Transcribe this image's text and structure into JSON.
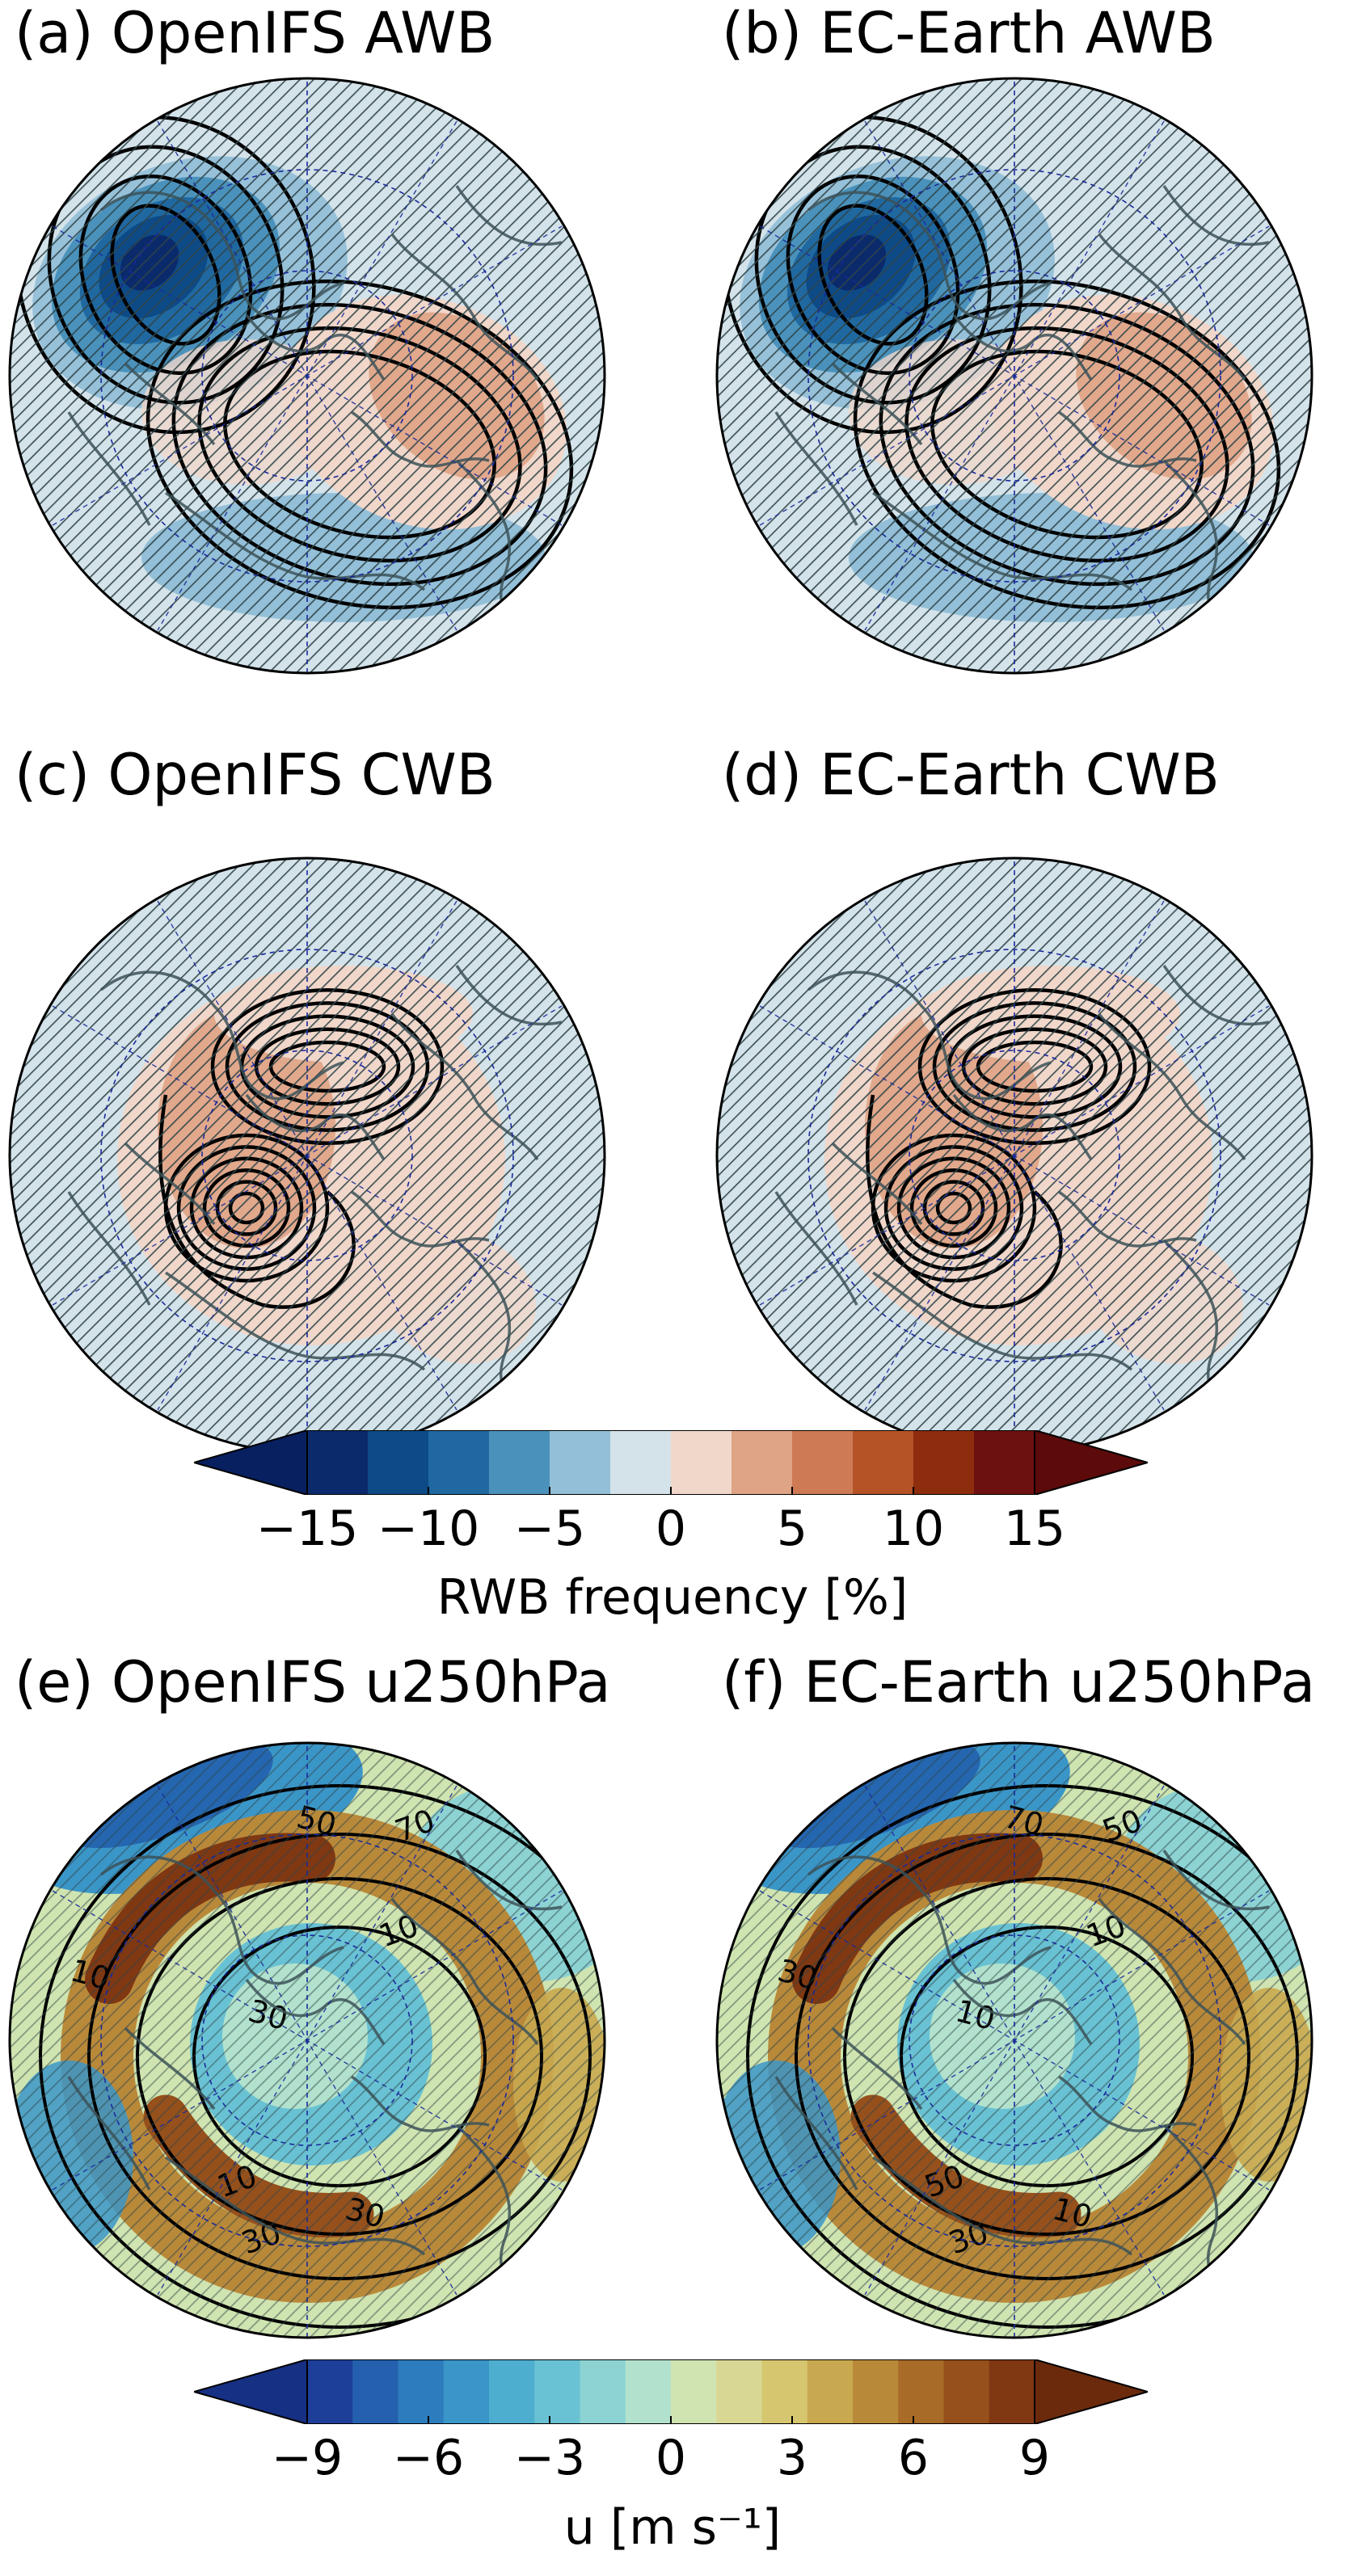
{
  "panels": [
    {
      "id": "a",
      "title": "(a) OpenIFS AWB",
      "kind": "awb",
      "contour_labels": []
    },
    {
      "id": "b",
      "title": "(b) EC-Earth AWB",
      "kind": "awb",
      "contour_labels": []
    },
    {
      "id": "c",
      "title": "(c) OpenIFS CWB",
      "kind": "cwb",
      "contour_labels": []
    },
    {
      "id": "d",
      "title": "(d) EC-Earth CWB",
      "kind": "cwb",
      "contour_labels": []
    },
    {
      "id": "e",
      "title": "(e) OpenIFS u250hPa",
      "kind": "u250",
      "contour_labels": [
        "50",
        "70",
        "10",
        "10",
        "30",
        "10",
        "30",
        "30"
      ]
    },
    {
      "id": "f",
      "title": "(f) EC-Earth u250hPa",
      "kind": "u250",
      "contour_labels": [
        "70",
        "50",
        "30",
        "10",
        "10",
        "50",
        "10",
        "30"
      ]
    }
  ],
  "colorbars": [
    {
      "label": "RWB frequency [%]",
      "ticks": [
        "−15",
        "−10",
        "−5",
        "0",
        "5",
        "10",
        "15"
      ],
      "colors": [
        "#0a2a6b",
        "#0d4a86",
        "#2068a0",
        "#4a92bc",
        "#93bfd8",
        "#d4e3ea",
        "#f0d7ca",
        "#dfa385",
        "#cd7a55",
        "#b65326",
        "#8e2c0e",
        "#6d1010"
      ],
      "under": "#082060",
      "over": "#5c0a0a"
    },
    {
      "label": "u [m s⁻¹]",
      "ticks": [
        "−9",
        "−6",
        "−3",
        "0",
        "3",
        "6",
        "9"
      ],
      "colors": [
        "#1e3f99",
        "#2460ad",
        "#2d7cbd",
        "#3b96c8",
        "#4eaecf",
        "#69c2d3",
        "#8dd3d3",
        "#b2e2cd",
        "#cfe4b0",
        "#d8d894",
        "#d6c66f",
        "#c9a94f",
        "#b9893a",
        "#a86b28",
        "#95501c",
        "#7f3812"
      ],
      "under": "#163083",
      "over": "#6b2a0c"
    }
  ]
}
